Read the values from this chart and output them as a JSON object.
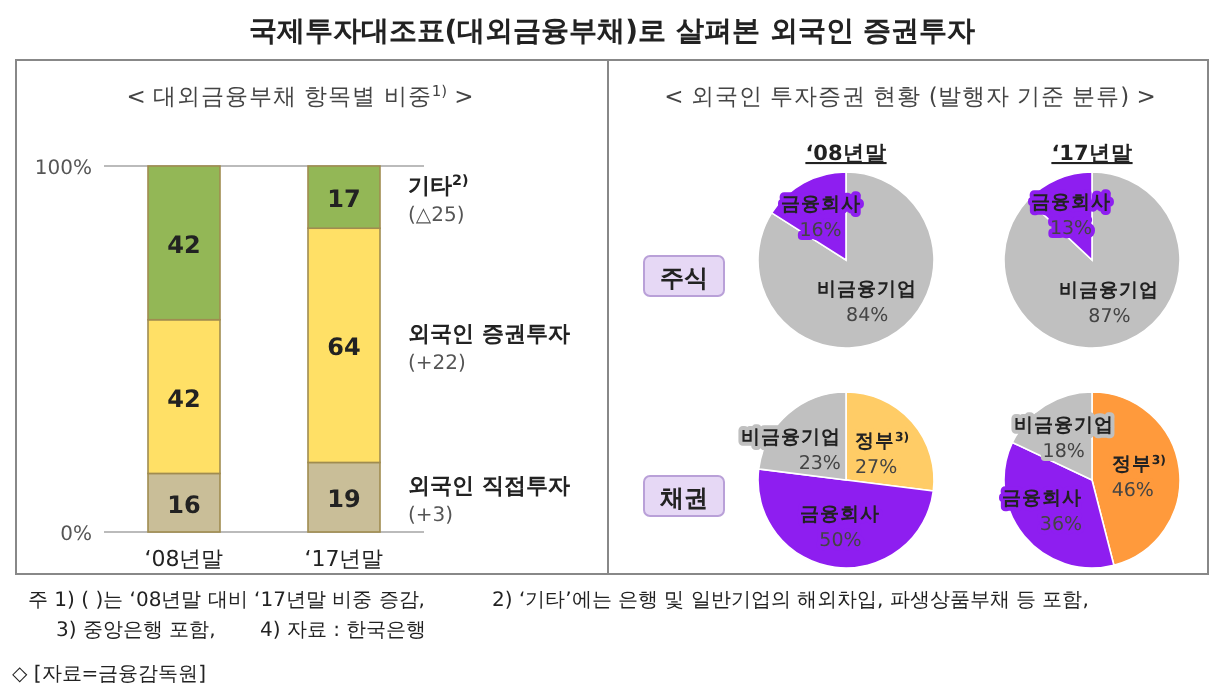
{
  "chart_data": [
    {
      "type": "bar",
      "title": "국제투자대조표(대외금융부채)로 살펴본 외국인 증권투자",
      "subtitle": "< 대외금융부채 항목별 비중$^{1)}$ >",
      "categories": [
        "‘08년말",
        "‘17년말"
      ],
      "stacked": true,
      "data_labels": true,
      "ylim": [
        0,
        100
      ],
      "yticks": [
        {
          "value": 0,
          "label": "0%"
        },
        {
          "value": 100,
          "label": "100%"
        }
      ],
      "series": [
        {
          "name": "외국인 직접투자",
          "color": "#c9be98",
          "values": [
            16,
            19
          ]
        },
        {
          "name": "외국인 증권투자",
          "color": "#ffe066",
          "values": [
            42,
            64
          ]
        },
        {
          "name": "기타$^{2)}$",
          "color": "#93b756",
          "values": [
            42,
            17
          ]
        }
      ],
      "annotations": [
        "(+3)",
        "(+22)",
        "(△25)",
        "주 1) ( )는 ‘08년말 대비 ‘17년말 비중 증감,",
        "2) ‘기타’에는 은행 및 일반기업의 해외차입, 파생상품부채 등 포함,",
        "3) 중앙은행 포함,",
        "4) 자료 : 한국은행",
        "◇ [자료=금융감독원]"
      ]
    },
    {
      "type": "pie",
      "title": "‘08년말",
      "subtitle": "< 외국인 투자증권 현황 (발행자 기준 분류) >",
      "annotations": [
        "주식"
      ],
      "categories": [
        "비금융기업",
        "금융회사"
      ],
      "values": [
        84,
        16
      ],
      "colors": [
        "#c0c0c0",
        "#8e1ef0"
      ],
      "value_labels": [
        "84%",
        "16%"
      ]
    },
    {
      "type": "pie",
      "title": "‘17년말",
      "categories": [
        "비금융기업",
        "금융회사"
      ],
      "values": [
        87,
        13
      ],
      "colors": [
        "#c0c0c0",
        "#8e1ef0"
      ],
      "value_labels": [
        "87%",
        "13%"
      ]
    },
    {
      "type": "pie",
      "annotations": [
        "채권"
      ],
      "categories": [
        "정부$^{3)}$",
        "금융회사",
        "비금융기업"
      ],
      "values": [
        27,
        50,
        23
      ],
      "colors": [
        "#ffcc66",
        "#8e1ef0",
        "#c0c0c0"
      ],
      "value_labels": [
        "27%",
        "50%",
        "23%"
      ]
    },
    {
      "type": "pie",
      "categories": [
        "정부$^{3)}$",
        "금융회사",
        "비금융기업"
      ],
      "values": [
        46,
        36,
        18
      ],
      "colors": [
        "#ff9a3c",
        "#8e1ef0",
        "#c0c0c0"
      ],
      "value_labels": [
        "46%",
        "36%",
        "18%"
      ]
    }
  ]
}
